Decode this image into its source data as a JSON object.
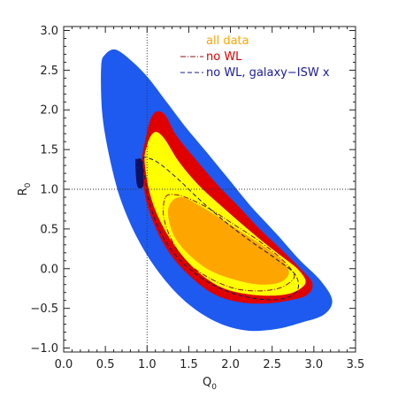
{
  "chart_data": {
    "type": "contour",
    "xlabel": "Q",
    "xlabel_sub": "0",
    "ylabel": "R",
    "ylabel_sub": "0",
    "xlim": [
      0.0,
      3.5
    ],
    "ylim": [
      -1.05,
      3.05
    ],
    "xticks": [
      0.0,
      0.5,
      1.0,
      1.5,
      2.0,
      2.5,
      3.0,
      3.5
    ],
    "yticks": [
      -1.0,
      -0.5,
      0.0,
      0.5,
      1.0,
      1.5,
      2.0,
      2.5,
      3.0
    ],
    "xtick_labels": [
      "0.0",
      "0.5",
      "1.0",
      "1.5",
      "2.0",
      "2.5",
      "3.0",
      "3.5"
    ],
    "ytick_labels": [
      "−1.0",
      "−0.5",
      "0.0",
      "0.5",
      "1.0",
      "1.5",
      "2.0",
      "2.5",
      "3.0"
    ],
    "reference_lines": {
      "x": 1.0,
      "y": 1.0,
      "style": "dotted"
    },
    "legend": {
      "placement": "top-right",
      "entries": [
        {
          "label": "all data",
          "color": "#FFA500",
          "style": "filled"
        },
        {
          "label": "no WL",
          "color": "#DD0000",
          "style": "dash-dot"
        },
        {
          "label": "no WL, galaxy−ISW x",
          "color": "#1A1AA0",
          "style": "dashed"
        }
      ]
    },
    "colors": {
      "outer_95": "#1E5AF0",
      "mid_red": "#E00000",
      "inner_yellow": "#FFFF00",
      "core_orange": "#FFA500",
      "navy_sliver": "#101060"
    },
    "regions": [
      {
        "series": "all data (95%, outer)",
        "color_key": "outer_95",
        "points": [
          [
            0.45,
            2.55
          ],
          [
            0.5,
            2.7
          ],
          [
            0.62,
            2.76
          ],
          [
            0.8,
            2.63
          ],
          [
            1.0,
            2.42
          ],
          [
            1.22,
            2.12
          ],
          [
            1.45,
            1.8
          ],
          [
            1.72,
            1.46
          ],
          [
            2.0,
            1.1
          ],
          [
            2.25,
            0.78
          ],
          [
            2.55,
            0.44
          ],
          [
            2.82,
            0.12
          ],
          [
            3.08,
            -0.15
          ],
          [
            3.22,
            -0.4
          ],
          [
            3.12,
            -0.58
          ],
          [
            2.85,
            -0.68
          ],
          [
            2.55,
            -0.76
          ],
          [
            2.2,
            -0.78
          ],
          [
            1.85,
            -0.68
          ],
          [
            1.5,
            -0.45
          ],
          [
            1.18,
            -0.1
          ],
          [
            0.9,
            0.35
          ],
          [
            0.68,
            0.88
          ],
          [
            0.54,
            1.45
          ],
          [
            0.46,
            1.98
          ]
        ]
      },
      {
        "series": "all data (intermediate)",
        "color_key": "mid_red",
        "points": [
          [
            0.94,
            1.35
          ],
          [
            0.98,
            1.62
          ],
          [
            1.04,
            1.88
          ],
          [
            1.12,
            1.98
          ],
          [
            1.22,
            1.93
          ],
          [
            1.35,
            1.68
          ],
          [
            1.58,
            1.38
          ],
          [
            1.85,
            1.05
          ],
          [
            2.1,
            0.78
          ],
          [
            2.35,
            0.5
          ],
          [
            2.6,
            0.25
          ],
          [
            2.82,
            0.02
          ],
          [
            2.98,
            -0.18
          ],
          [
            2.92,
            -0.33
          ],
          [
            2.7,
            -0.4
          ],
          [
            2.4,
            -0.44
          ],
          [
            2.1,
            -0.42
          ],
          [
            1.8,
            -0.32
          ],
          [
            1.52,
            -0.1
          ],
          [
            1.28,
            0.18
          ],
          [
            1.1,
            0.52
          ],
          [
            0.98,
            0.9
          ]
        ]
      },
      {
        "series": "all data (68%)",
        "color_key": "inner_yellow",
        "points": [
          [
            0.97,
            1.35
          ],
          [
            1.0,
            1.55
          ],
          [
            1.05,
            1.68
          ],
          [
            1.12,
            1.72
          ],
          [
            1.22,
            1.62
          ],
          [
            1.38,
            1.35
          ],
          [
            1.62,
            1.05
          ],
          [
            1.9,
            0.78
          ],
          [
            2.15,
            0.55
          ],
          [
            2.4,
            0.33
          ],
          [
            2.62,
            0.15
          ],
          [
            2.82,
            -0.02
          ],
          [
            2.9,
            -0.18
          ],
          [
            2.75,
            -0.3
          ],
          [
            2.5,
            -0.34
          ],
          [
            2.2,
            -0.32
          ],
          [
            1.9,
            -0.24
          ],
          [
            1.62,
            -0.05
          ],
          [
            1.38,
            0.22
          ],
          [
            1.18,
            0.55
          ],
          [
            1.04,
            0.92
          ]
        ]
      },
      {
        "series": "all data (core)",
        "color_key": "core_orange",
        "points": [
          [
            1.25,
            0.7
          ],
          [
            1.3,
            0.85
          ],
          [
            1.42,
            0.9
          ],
          [
            1.62,
            0.8
          ],
          [
            1.9,
            0.62
          ],
          [
            2.15,
            0.45
          ],
          [
            2.4,
            0.28
          ],
          [
            2.62,
            0.1
          ],
          [
            2.7,
            -0.05
          ],
          [
            2.6,
            -0.17
          ],
          [
            2.35,
            -0.2
          ],
          [
            2.05,
            -0.14
          ],
          [
            1.75,
            -0.02
          ],
          [
            1.5,
            0.18
          ],
          [
            1.32,
            0.42
          ]
        ]
      },
      {
        "series": "sliver",
        "color_key": "navy_sliver",
        "points": [
          [
            0.86,
            1.35
          ],
          [
            0.88,
            1.38
          ],
          [
            0.94,
            1.36
          ],
          [
            0.96,
            1.1
          ],
          [
            0.94,
            1.02
          ],
          [
            0.88,
            1.05
          ]
        ]
      }
    ],
    "contour_lines": [
      {
        "series": "no WL",
        "color": "#8B1010",
        "dash": "6 2 1 2",
        "points": [
          [
            1.22,
            0.9
          ],
          [
            1.35,
            0.93
          ],
          [
            1.55,
            0.86
          ],
          [
            1.8,
            0.72
          ],
          [
            2.05,
            0.55
          ],
          [
            2.3,
            0.38
          ],
          [
            2.55,
            0.18
          ],
          [
            2.72,
            0.0
          ],
          [
            2.76,
            -0.12
          ],
          [
            2.6,
            -0.24
          ],
          [
            2.35,
            -0.28
          ],
          [
            2.05,
            -0.25
          ],
          [
            1.75,
            -0.12
          ],
          [
            1.48,
            0.08
          ],
          [
            1.3,
            0.35
          ],
          [
            1.2,
            0.65
          ]
        ]
      },
      {
        "series": "no WL, galaxy−ISW x",
        "color": "#1A1A60",
        "dash": "5 3",
        "points": [
          [
            0.95,
            1.38
          ],
          [
            1.05,
            1.38
          ],
          [
            1.18,
            1.3
          ],
          [
            1.4,
            1.1
          ],
          [
            1.65,
            0.85
          ],
          [
            1.95,
            0.58
          ],
          [
            2.25,
            0.34
          ],
          [
            2.55,
            0.12
          ],
          [
            2.78,
            -0.08
          ],
          [
            2.8,
            -0.28
          ],
          [
            2.62,
            -0.38
          ],
          [
            2.32,
            -0.38
          ],
          [
            2.0,
            -0.3
          ],
          [
            1.7,
            -0.15
          ],
          [
            1.4,
            0.1
          ],
          [
            1.18,
            0.42
          ],
          [
            1.04,
            0.78
          ],
          [
            0.98,
            1.1
          ]
        ]
      }
    ]
  }
}
